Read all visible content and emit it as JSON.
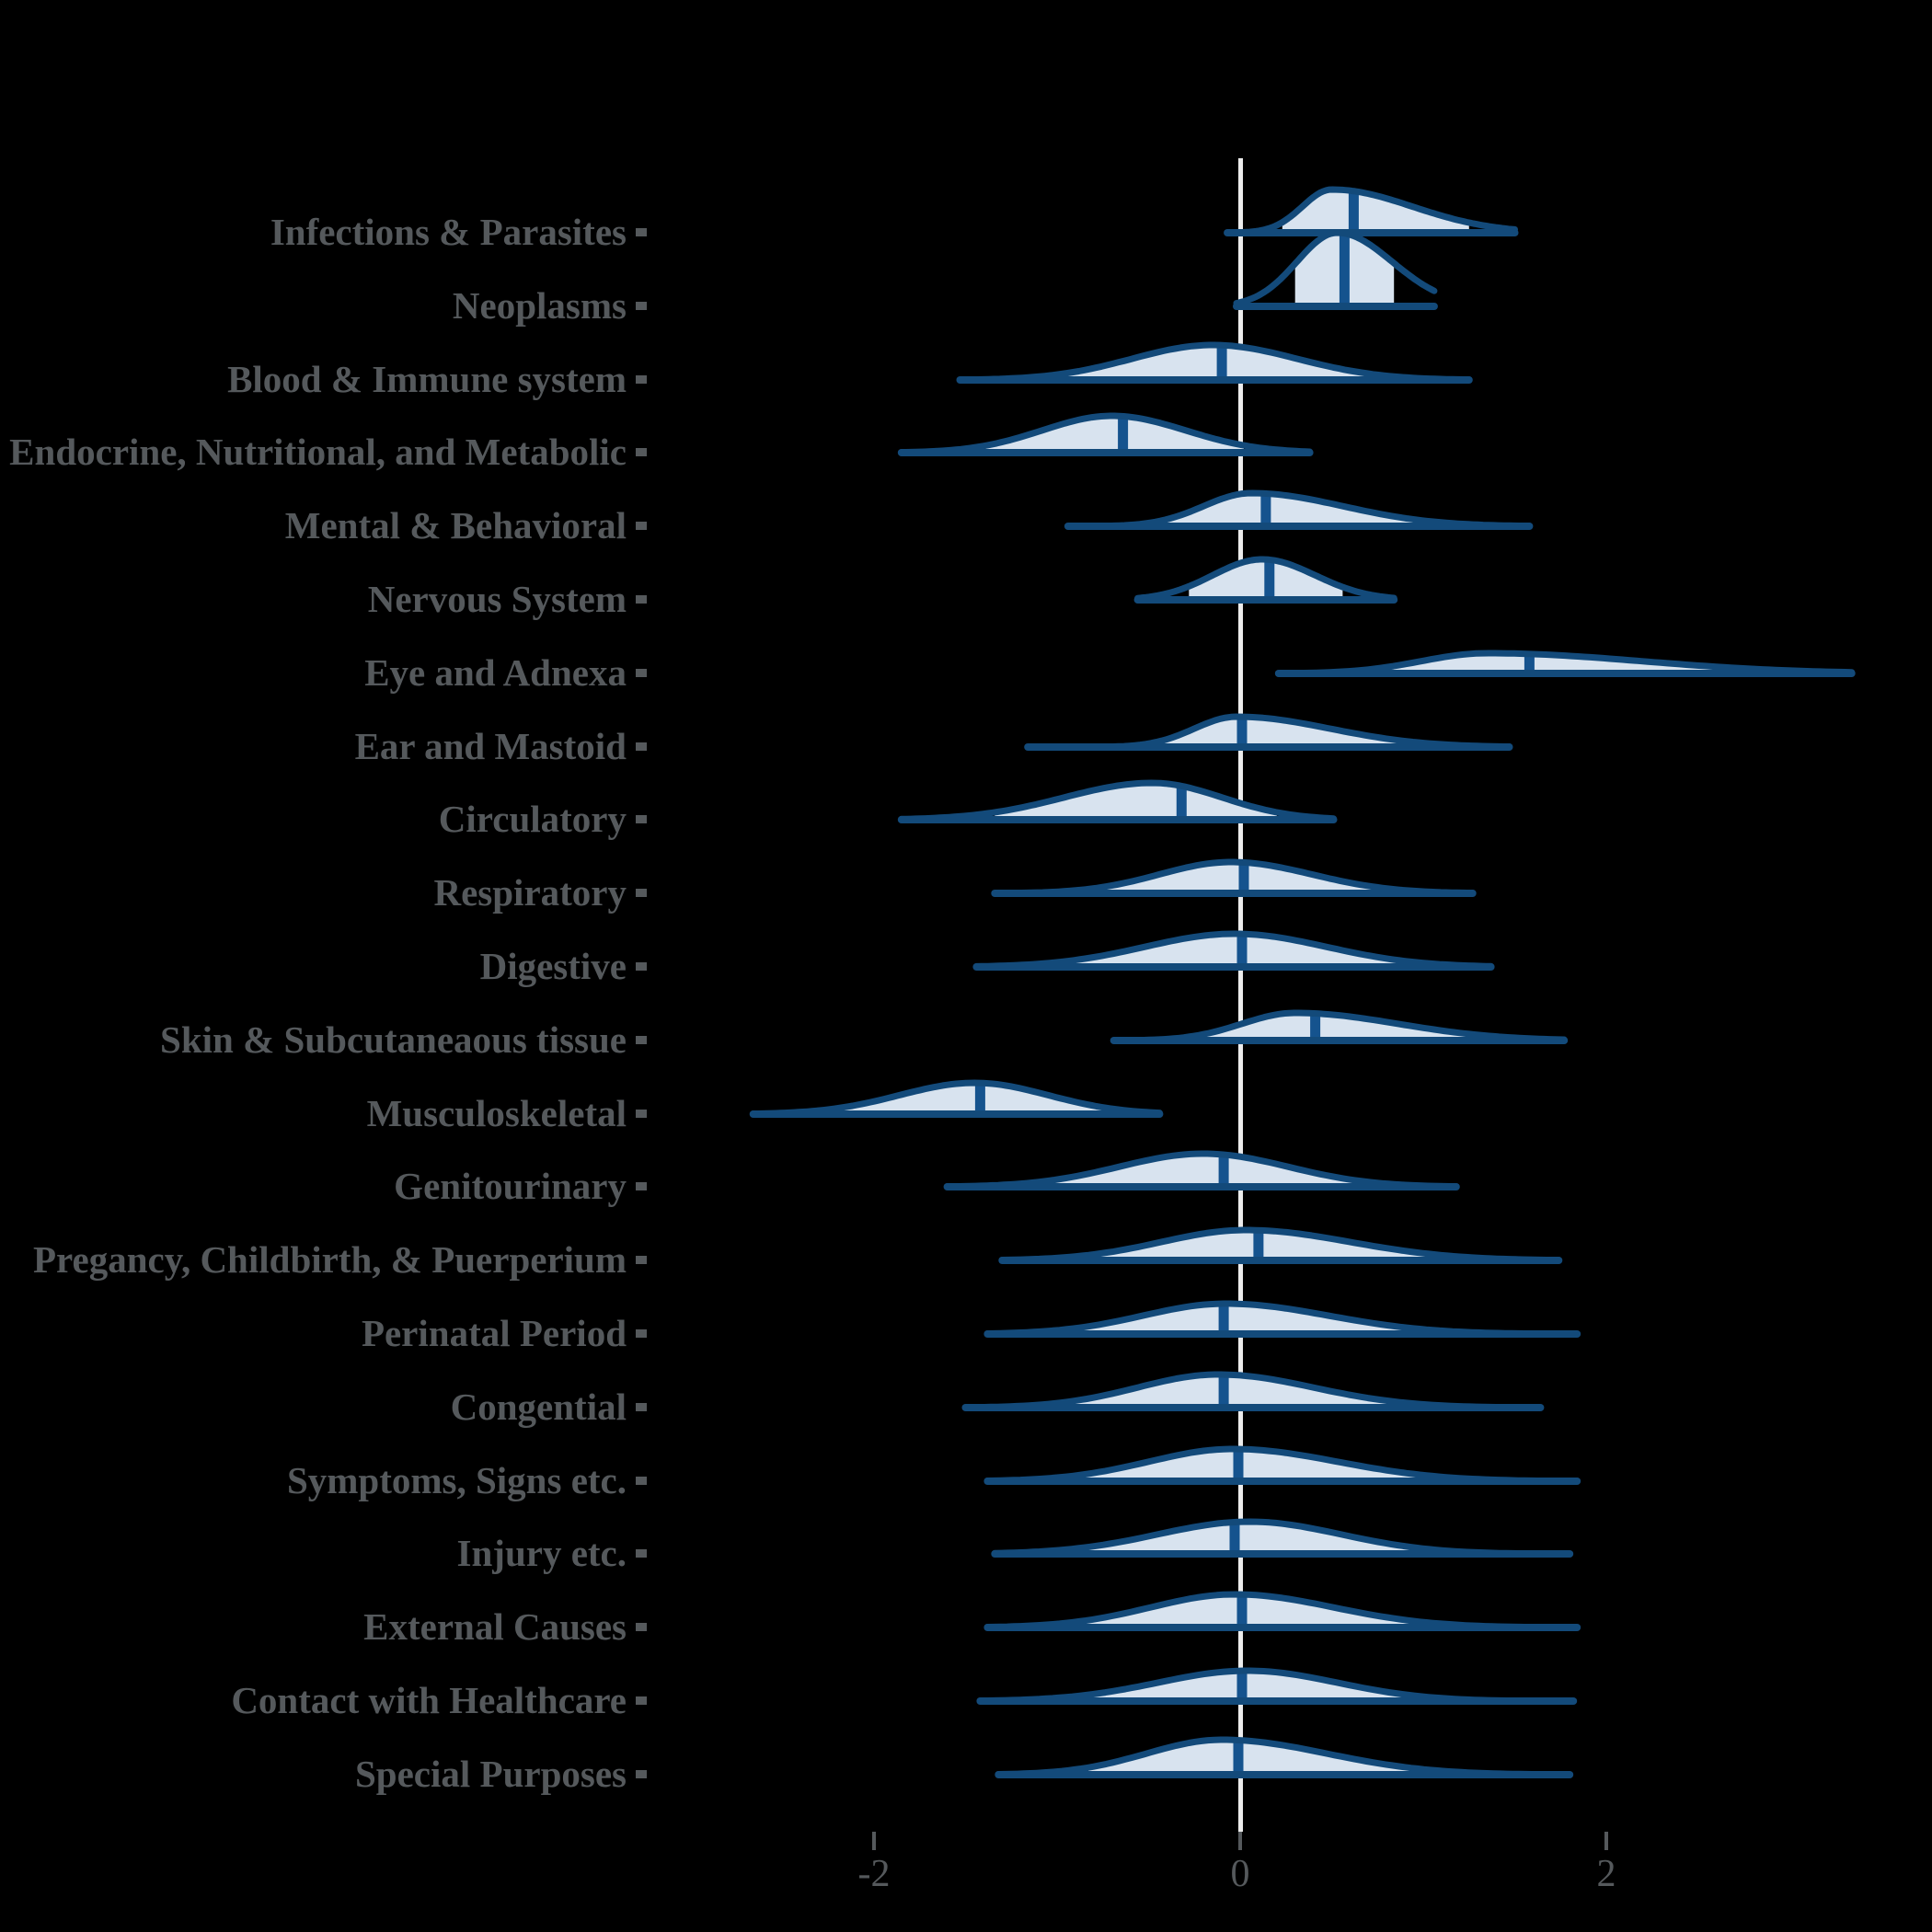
{
  "figure": {
    "background": "#000000",
    "outline_color": "#134a7a",
    "median_color": "#15538e",
    "fill_color": "#d8e3ef",
    "label_color": "#55595c",
    "axis_color": "#55595c",
    "zero_line_color": "#ececec"
  },
  "chart_data": {
    "type": "area",
    "subtype": "ridgeline-density-halfeye",
    "title": "",
    "xlabel": "",
    "ylabel": "",
    "grid": false,
    "legend": "none",
    "x_axis": {
      "range": [
        -2.9,
        3.6
      ],
      "ticks": [
        -2,
        0,
        2
      ],
      "tick_labels": [
        "-2",
        "0",
        "2"
      ],
      "zero_reference_line": true
    },
    "categories": [
      {
        "label": "Infections & Parasites",
        "median": 0.62,
        "mode": 0.5,
        "sd_left": 0.16,
        "sd_right": 0.44,
        "range": [
          -0.07,
          1.5
        ],
        "interval": [
          0.23,
          1.25
        ],
        "peak": 47
      },
      {
        "label": "Neoplasms",
        "median": 0.57,
        "mode": 0.53,
        "sd_left": 0.22,
        "sd_right": 0.3,
        "range": [
          -0.02,
          1.06
        ],
        "interval": [
          0.3,
          0.84
        ],
        "peak": 80
      },
      {
        "label": "Blood & Immune system",
        "median": -0.1,
        "mode": -0.15,
        "sd_left": 0.44,
        "sd_right": 0.46,
        "range": [
          -1.53,
          1.25
        ],
        "interval": [
          -0.94,
          0.68
        ],
        "peak": 38
      },
      {
        "label": "Endocrine, Nutritional, and Metabolic",
        "median": -0.64,
        "mode": -0.7,
        "sd_left": 0.38,
        "sd_right": 0.4,
        "range": [
          -1.85,
          0.38
        ],
        "interval": [
          -1.39,
          0.02
        ],
        "peak": 40
      },
      {
        "label": "Mental & Behavioral",
        "median": 0.14,
        "mode": 0.06,
        "sd_left": 0.26,
        "sd_right": 0.5,
        "range": [
          -0.94,
          1.58
        ],
        "interval": [
          -0.4,
          0.96
        ],
        "peak": 36
      },
      {
        "label": "Nervous System",
        "median": 0.16,
        "mode": 0.12,
        "sd_left": 0.27,
        "sd_right": 0.29,
        "range": [
          -0.56,
          0.84
        ],
        "interval": [
          -0.28,
          0.56
        ],
        "peak": 44
      },
      {
        "label": "Eye and Adnexa",
        "median": 1.58,
        "mode": 1.35,
        "sd_left": 0.36,
        "sd_right": 0.84,
        "range": [
          0.21,
          3.34
        ],
        "interval": [
          0.77,
          2.69
        ],
        "peak": 22
      },
      {
        "label": "Ear and Mastoid",
        "median": 0.01,
        "mode": -0.02,
        "sd_left": 0.23,
        "sd_right": 0.51,
        "range": [
          -1.16,
          1.47
        ],
        "interval": [
          -0.44,
          0.89
        ],
        "peak": 33
      },
      {
        "label": "Circulatory",
        "median": -0.32,
        "mode": -0.48,
        "sd_left": 0.48,
        "sd_right": 0.38,
        "range": [
          -1.85,
          0.51
        ],
        "interval": [
          -1.34,
          0.2
        ],
        "peak": 40
      },
      {
        "label": "Respiratory",
        "median": 0.02,
        "mode": -0.05,
        "sd_left": 0.39,
        "sd_right": 0.44,
        "range": [
          -1.34,
          1.27
        ],
        "interval": [
          -0.76,
          0.74
        ],
        "peak": 34
      },
      {
        "label": "Digestive",
        "median": 0.01,
        "mode": -0.03,
        "sd_left": 0.49,
        "sd_right": 0.5,
        "range": [
          -1.44,
          1.37
        ],
        "interval": [
          -0.92,
          0.87
        ],
        "peak": 36
      },
      {
        "label": "Skin & Subcutaneaous tissue",
        "median": 0.41,
        "mode": 0.3,
        "sd_left": 0.29,
        "sd_right": 0.56,
        "range": [
          -0.69,
          1.77
        ],
        "interval": [
          -0.23,
          1.31
        ],
        "peak": 30
      },
      {
        "label": "Musculoskeletal",
        "median": -1.42,
        "mode": -1.45,
        "sd_left": 0.41,
        "sd_right": 0.4,
        "range": [
          -2.66,
          -0.44
        ],
        "interval": [
          -2.18,
          -0.73
        ],
        "peak": 34
      },
      {
        "label": "Genitourinary",
        "median": -0.09,
        "mode": -0.2,
        "sd_left": 0.46,
        "sd_right": 0.46,
        "range": [
          -1.6,
          1.18
        ],
        "interval": [
          -1.02,
          0.63
        ],
        "peak": 36
      },
      {
        "label": "Pregancy, Childbirth, & Puerperium",
        "median": 0.1,
        "mode": 0.03,
        "sd_left": 0.46,
        "sd_right": 0.57,
        "range": [
          -1.3,
          1.74
        ],
        "interval": [
          -0.79,
          1.06
        ],
        "peak": 33
      },
      {
        "label": "Perinatal Period",
        "median": -0.09,
        "mode": -0.08,
        "sd_left": 0.45,
        "sd_right": 0.56,
        "range": [
          -1.38,
          1.84
        ],
        "interval": [
          -0.89,
          0.93
        ],
        "peak": 33
      },
      {
        "label": "Congential",
        "median": -0.09,
        "mode": -0.12,
        "sd_left": 0.44,
        "sd_right": 0.52,
        "range": [
          -1.5,
          1.64
        ],
        "interval": [
          -0.91,
          0.81
        ],
        "peak": 36
      },
      {
        "label": "Symptoms, Signs etc.",
        "median": -0.01,
        "mode": -0.04,
        "sd_left": 0.46,
        "sd_right": 0.57,
        "range": [
          -1.38,
          1.84
        ],
        "interval": [
          -0.87,
          0.99
        ],
        "peak": 35
      },
      {
        "label": "Injury etc.",
        "median": -0.03,
        "mode": 0.05,
        "sd_left": 0.5,
        "sd_right": 0.5,
        "range": [
          -1.34,
          1.8
        ],
        "interval": [
          -0.85,
          0.95
        ],
        "peak": 35
      },
      {
        "label": "External Causes",
        "median": 0.01,
        "mode": -0.03,
        "sd_left": 0.46,
        "sd_right": 0.54,
        "range": [
          -1.38,
          1.84
        ],
        "interval": [
          -0.85,
          0.95
        ],
        "peak": 36
      },
      {
        "label": "Contact with Healthcare",
        "median": 0.01,
        "mode": 0.04,
        "sd_left": 0.49,
        "sd_right": 0.49,
        "range": [
          -1.42,
          1.82
        ],
        "interval": [
          -0.85,
          0.93
        ],
        "peak": 33
      },
      {
        "label": "Special Purposes",
        "median": -0.01,
        "mode": -0.1,
        "sd_left": 0.41,
        "sd_right": 0.57,
        "range": [
          -1.32,
          1.8
        ],
        "interval": [
          -0.83,
          0.93
        ],
        "peak": 38
      }
    ]
  }
}
